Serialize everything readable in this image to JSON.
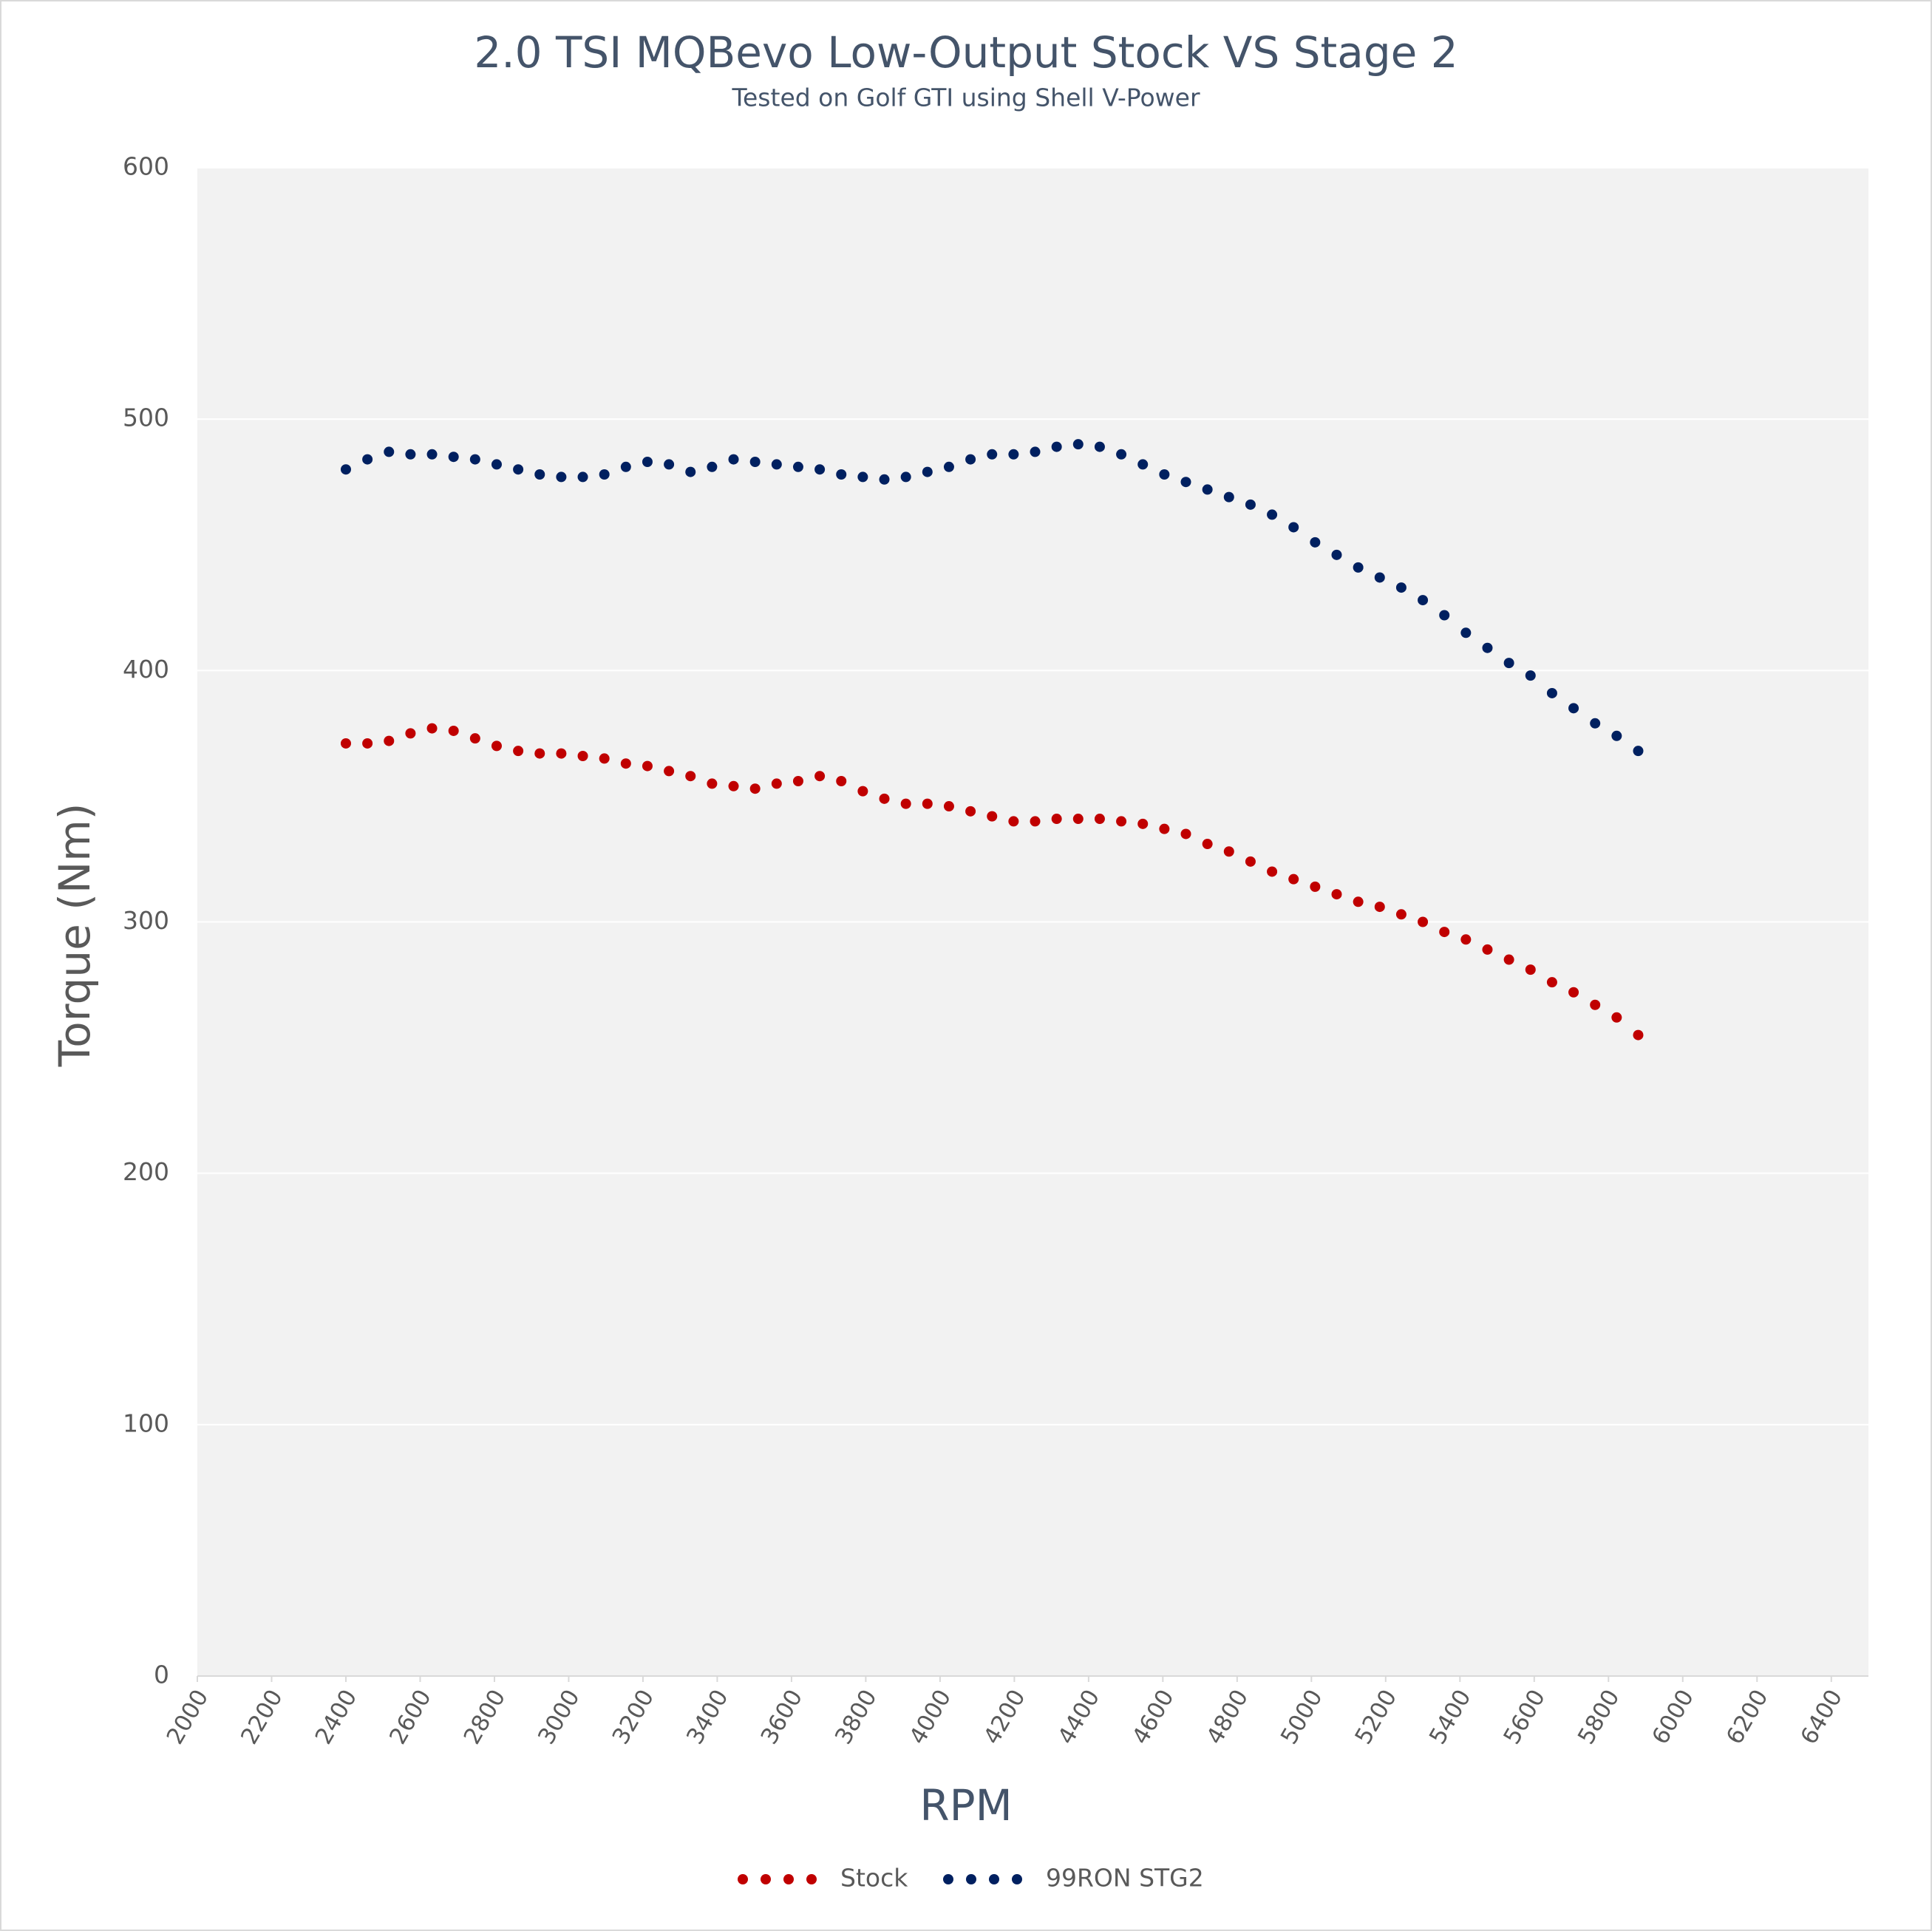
{
  "chart_data": {
    "type": "scatter",
    "title": "2.0 TSI MQBevo Low-Output Stock VS Stage 2",
    "subtitle": "Tested on Golf GTI using Shell V-Power",
    "x_label": "RPM",
    "y_label": "Torque (Nm)",
    "x": [
      2400,
      2458,
      2516,
      2574,
      2632,
      2690,
      2748,
      2806,
      2864,
      2922,
      2980,
      3038,
      3096,
      3154,
      3212,
      3270,
      3328,
      3386,
      3444,
      3502,
      3560,
      3618,
      3676,
      3734,
      3792,
      3850,
      3908,
      3966,
      4024,
      4082,
      4140,
      4198,
      4256,
      4314,
      4372,
      4430,
      4488,
      4546,
      4604,
      4662,
      4720,
      4778,
      4836,
      4894,
      4952,
      5010,
      5068,
      5126,
      5184,
      5242,
      5300,
      5358,
      5416,
      5474,
      5532,
      5590,
      5648,
      5706,
      5764,
      5822,
      5880
    ],
    "series": [
      {
        "name": "Stock",
        "color": "#c00000",
        "values": [
          371,
          371,
          372,
          375,
          377,
          376,
          373,
          370,
          368,
          367,
          367,
          366,
          365,
          363,
          362,
          360,
          358,
          355,
          354,
          353,
          355,
          356,
          358,
          356,
          352,
          349,
          347,
          347,
          346,
          344,
          342,
          340,
          340,
          341,
          341,
          341,
          340,
          339,
          337,
          335,
          331,
          328,
          324,
          320,
          317,
          314,
          311,
          308,
          306,
          303,
          300,
          296,
          293,
          289,
          285,
          281,
          276,
          272,
          267,
          262,
          255
        ]
      },
      {
        "name": "99RON STG2",
        "color": "#002060",
        "values": [
          480,
          484,
          487,
          486,
          486,
          485,
          484,
          482,
          480,
          478,
          477,
          477,
          478,
          481,
          483,
          482,
          479,
          481,
          484,
          483,
          482,
          481,
          480,
          478,
          477,
          476,
          477,
          479,
          481,
          484,
          486,
          486,
          487,
          489,
          490,
          489,
          486,
          482,
          478,
          475,
          472,
          469,
          466,
          462,
          457,
          451,
          446,
          441,
          437,
          433,
          428,
          422,
          415,
          409,
          403,
          398,
          391,
          385,
          379,
          374,
          368
        ]
      }
    ],
    "xlim": [
      2000,
      6500
    ],
    "xticks": [
      2000,
      2200,
      2400,
      2600,
      2800,
      3000,
      3200,
      3400,
      3600,
      3800,
      4000,
      4200,
      4400,
      4600,
      4800,
      5000,
      5200,
      5400,
      5600,
      5800,
      6000,
      6200,
      6400
    ],
    "ylim": [
      0,
      600
    ],
    "yticks": [
      0,
      100,
      200,
      300,
      400,
      500,
      600
    ],
    "grid": true,
    "legend": "bottom"
  }
}
